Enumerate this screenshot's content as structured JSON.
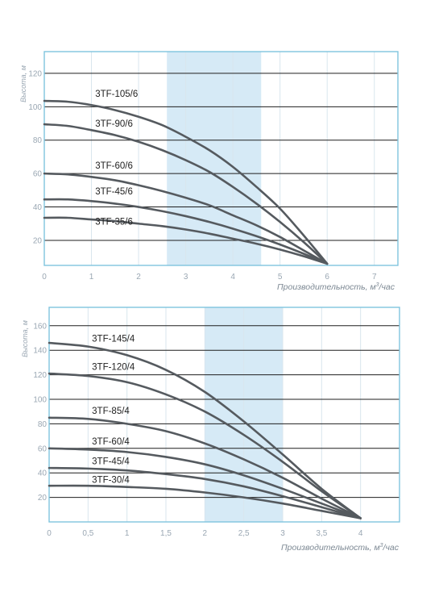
{
  "colors": {
    "frame": "#7fc4de",
    "grid": "#1f1f1f",
    "band": "#d6eaf6",
    "curve": "#555a5f",
    "tick": "#9aa7b3"
  },
  "chart_data": [
    {
      "type": "line",
      "title": "",
      "xlabel": "Производительность, м",
      "xlabel_sup": "3",
      "xlabel_suffix": "/час",
      "ylabel": "Высота, м",
      "xlim": [
        0,
        7.5
      ],
      "ylim": [
        5,
        133
      ],
      "xticks": [
        0,
        1,
        2,
        3,
        4,
        5,
        6,
        7
      ],
      "xtick_labels": [
        "0",
        "1",
        "2",
        "3",
        "4",
        "5",
        "6",
        "7"
      ],
      "yticks": [
        20,
        40,
        60,
        80,
        100,
        120
      ],
      "ytick_labels": [
        "20",
        "40",
        "60",
        "80",
        "100",
        "120"
      ],
      "highlight_band": [
        2.6,
        4.6
      ],
      "series": [
        {
          "name": "3TF-105/6",
          "label_at": [
            1.08,
            106
          ],
          "x": [
            0,
            0.5,
            1,
            1.5,
            2,
            2.5,
            3,
            3.5,
            4,
            4.5,
            5,
            5.5,
            6
          ],
          "y": [
            103.5,
            103,
            101,
            98,
            94,
            89,
            82,
            74,
            64,
            52,
            39,
            23,
            6
          ]
        },
        {
          "name": "3TF-90/6",
          "label_at": [
            1.08,
            88
          ],
          "x": [
            0,
            0.5,
            1,
            1.5,
            2,
            2.5,
            3,
            3.5,
            4,
            4.5,
            5,
            5.5,
            6
          ],
          "y": [
            89.5,
            88.5,
            86,
            83,
            79,
            74,
            68,
            61,
            52,
            42,
            31,
            19,
            6
          ]
        },
        {
          "name": "3TF-60/6",
          "label_at": [
            1.08,
            63
          ],
          "x": [
            0,
            0.5,
            1,
            1.5,
            2,
            2.5,
            3,
            3.5,
            4,
            4.5,
            5,
            5.5,
            6
          ],
          "y": [
            60,
            59.5,
            58,
            56,
            53,
            49.5,
            45.5,
            41,
            35,
            29,
            22,
            14,
            6
          ]
        },
        {
          "name": "3TF-45/6",
          "label_at": [
            1.08,
            47.5
          ],
          "x": [
            0,
            0.5,
            1,
            1.5,
            2,
            2.5,
            3,
            3.5,
            4,
            4.5,
            5,
            5.5,
            6
          ],
          "y": [
            44.5,
            44.5,
            43.5,
            42,
            40,
            37.5,
            34.5,
            31,
            27,
            22.5,
            17.5,
            12,
            6
          ]
        },
        {
          "name": "3TF-35/6",
          "label_at": [
            1.08,
            29.5
          ],
          "x": [
            0,
            0.5,
            1,
            1.5,
            2,
            2.5,
            3,
            3.5,
            4,
            4.5,
            5,
            5.5,
            6
          ],
          "y": [
            33.5,
            33.5,
            32.5,
            31.5,
            30,
            28.5,
            26.5,
            24,
            21,
            18,
            14.5,
            10.5,
            6
          ]
        }
      ]
    },
    {
      "type": "line",
      "title": "",
      "xlabel": "Производительность, м",
      "xlabel_sup": "3",
      "xlabel_suffix": "/час",
      "ylabel": "Высота, м",
      "xlim": [
        0,
        4.5
      ],
      "ylim": [
        0,
        175
      ],
      "xticks": [
        0,
        0.5,
        1,
        1.5,
        2,
        2.5,
        3,
        3.5,
        4
      ],
      "xtick_labels": [
        "0",
        "0,5",
        "1",
        "1,5",
        "2",
        "2,5",
        "3",
        "3,5",
        "4"
      ],
      "yticks": [
        20,
        40,
        60,
        80,
        100,
        120,
        140,
        160
      ],
      "ytick_labels": [
        "20",
        "40",
        "60",
        "80",
        "100",
        "120",
        "140",
        "160"
      ],
      "highlight_band": [
        2.0,
        3.0
      ],
      "series": [
        {
          "name": "3TF-145/4",
          "label_at": [
            0.55,
            147
          ],
          "x": [
            0,
            0.5,
            1,
            1.5,
            2,
            2.5,
            3,
            3.5,
            4
          ],
          "y": [
            146,
            143,
            136,
            124,
            106,
            82,
            55,
            27,
            3
          ]
        },
        {
          "name": "3TF-120/4",
          "label_at": [
            0.55,
            124
          ],
          "x": [
            0,
            0.5,
            1,
            1.5,
            2,
            2.5,
            3,
            3.5,
            4
          ],
          "y": [
            121,
            119,
            114,
            104,
            90,
            71,
            49,
            25,
            3
          ]
        },
        {
          "name": "3TF-85/4",
          "label_at": [
            0.55,
            88
          ],
          "x": [
            0,
            0.5,
            1,
            1.5,
            2,
            2.5,
            3,
            3.5,
            4
          ],
          "y": [
            85,
            84,
            80,
            74,
            64,
            51,
            36,
            19,
            3
          ]
        },
        {
          "name": "3TF-60/4",
          "label_at": [
            0.55,
            63
          ],
          "x": [
            0,
            0.5,
            1,
            1.5,
            2,
            2.5,
            3,
            3.5,
            4
          ],
          "y": [
            60,
            59,
            57,
            53,
            47,
            38,
            27,
            15,
            3
          ]
        },
        {
          "name": "3TF-45/4",
          "label_at": [
            0.55,
            47
          ],
          "x": [
            0,
            0.5,
            1,
            1.5,
            2,
            2.5,
            3,
            3.5,
            4
          ],
          "y": [
            44,
            43.5,
            42,
            39,
            35,
            29,
            21,
            12,
            3
          ]
        },
        {
          "name": "3TF-30/4",
          "label_at": [
            0.55,
            32
          ],
          "x": [
            0,
            0.5,
            1,
            1.5,
            2,
            2.5,
            3,
            3.5,
            4
          ],
          "y": [
            29.5,
            29.5,
            28.5,
            27,
            24,
            20,
            15,
            9,
            3
          ]
        }
      ]
    }
  ]
}
